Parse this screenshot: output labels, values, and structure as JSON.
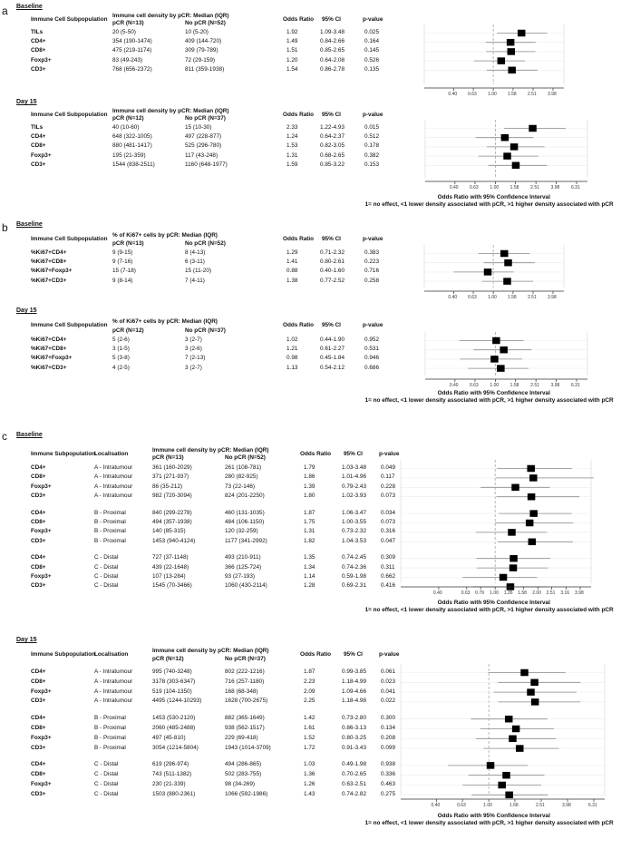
{
  "panels": [
    {
      "letter": "a",
      "blocks": [
        {
          "period": "Baseline",
          "header": {
            "subpop": "Immune Cell Subpopulation",
            "density": "Immune cell density by pCR: Median (IQR)",
            "pcr": "pCR (N=13)",
            "nopcr": "No pCR (N=52)",
            "or": "Odds Ratio",
            "ci": "95% CI",
            "p": "p-value"
          },
          "rows": [
            {
              "label": "TILs",
              "pcr": "20  (5-50)",
              "nopcr": "10 (5-20)",
              "or": "1.92",
              "ci": "1.09-3.48",
              "p": "0.025"
            },
            {
              "label": "CD4+",
              "pcr": "354 (190-1474)",
              "nopcr": "409 (144-720)",
              "or": "1.49",
              "ci": "0.84-2.66",
              "p": "0.164"
            },
            {
              "label": "CD8+",
              "pcr": "475 (219-1174)",
              "nopcr": "309 (79-789)",
              "or": "1.51",
              "ci": "0.85-2.65",
              "p": "0.145"
            },
            {
              "label": "Foxp3+",
              "pcr": "83 (49-243)",
              "nopcr": "72 (29-159)",
              "or": "1.20",
              "ci": "0.64-2.08",
              "p": "0.526"
            },
            {
              "label": "CD3+",
              "pcr": "768 (656-2372)",
              "nopcr": "811 (359-1938)",
              "or": "1.54",
              "ci": "0.86-2.78",
              "p": "0.135"
            }
          ],
          "ticks": [
            "0.40",
            "0.63",
            "1.00",
            "1.58",
            "2.51",
            "3.98"
          ]
        },
        {
          "period": "Day 15",
          "header": {
            "subpop": "Immune Cell Subpopulation",
            "density": "Immune cell density by pCR: Median (IQR)",
            "pcr": "pCR (N=12)",
            "nopcr": "No pCR (N=37)",
            "or": "Odds Ratio",
            "ci": "95% CI",
            "p": "p-value"
          },
          "rows": [
            {
              "label": "TILs",
              "pcr": "40  (10-60)",
              "nopcr": "15 (10-30)",
              "or": "2.33",
              "ci": "1.22-4.93",
              "p": "0.015"
            },
            {
              "label": "CD4+",
              "pcr": "648 (322-1005)",
              "nopcr": "497 (228-877)",
              "or": "1.24",
              "ci": "0.64-2.37",
              "p": "0.512"
            },
            {
              "label": "CD8+",
              "pcr": "880 (481-1417)",
              "nopcr": "525 (296-780)",
              "or": "1.53",
              "ci": "0.82-3.05",
              "p": "0.178"
            },
            {
              "label": "Foxp3+",
              "pcr": "195 (21-359)",
              "nopcr": "117 (43-248)",
              "or": "1.31",
              "ci": "0.68-2.65",
              "p": "0.382"
            },
            {
              "label": "CD3+",
              "pcr": "1544 (838-2511)",
              "nopcr": "1160 (648-1977)",
              "or": "1.59",
              "ci": "0.85-3.22",
              "p": "0.153"
            }
          ],
          "ticks": [
            "0.40",
            "0.63",
            "1.00",
            "1.58",
            "2.51",
            "3.98",
            "6.31"
          ],
          "footer": [
            "Odds Ratio with 95% Confidence Interval",
            "1= no effect, <1 lower density associated with pCR, >1 higher density associated with pCR"
          ]
        }
      ]
    },
    {
      "letter": "b",
      "blocks": [
        {
          "period": "Baseline",
          "header": {
            "subpop": "Immune Cell Subpopulation",
            "density": "% of Ki67+ cells by pCR: Median (IQR)",
            "pcr": "pCR (N=13)",
            "nopcr": "No pCR (N=52)",
            "or": "Odds Ratio",
            "ci": "95% CI",
            "p": "p-value"
          },
          "rows": [
            {
              "label": "%Ki67+CD4+",
              "pcr": "9 (9-15)",
              "nopcr": "8 (4-13)",
              "or": "1.29",
              "ci": "0.71-2.32",
              "p": "0.383"
            },
            {
              "label": "%Ki67+CD8+",
              "pcr": "9 (7-16)",
              "nopcr": "6 (3-11)",
              "or": "1.41",
              "ci": "0.80-2.61",
              "p": "0.223"
            },
            {
              "label": "%Ki67+Foxp3+",
              "pcr": "15 (7-18)",
              "nopcr": "15 (11-20)",
              "or": "0.88",
              "ci": "0.40-1.60",
              "p": "0.716"
            },
            {
              "label": "%Ki67+CD3+",
              "pcr": "9 (8-14)",
              "nopcr": "7 (4-11)",
              "or": "1.38",
              "ci": "0.77-2.52",
              "p": "0.258"
            }
          ],
          "ticks": [
            "0.40",
            "0.63",
            "1.00",
            "1.58",
            "2.51",
            "3.98"
          ]
        },
        {
          "period": "Day 15",
          "header": {
            "subpop": "Immune Cell Subpopulation",
            "density": "% of Ki67+ cells by pCR: Median (IQR)",
            "pcr": "pCR (N=12)",
            "nopcr": "No pCR (N=37)",
            "or": "Odds Ratio",
            "ci": "95% CI",
            "p": "p-value"
          },
          "rows": [
            {
              "label": "%Ki67+CD4+",
              "pcr": "5 (2-6)",
              "nopcr": "3 (2-7)",
              "or": "1.02",
              "ci": "0.44-1.90",
              "p": "0.952"
            },
            {
              "label": "%Ki67+CD8+",
              "pcr": "3 (1-5)",
              "nopcr": "3 (2-6)",
              "or": "1.21",
              "ci": "0.61-2.27",
              "p": "0.531"
            },
            {
              "label": "%Ki67+Foxp3+",
              "pcr": "5 (3-8)",
              "nopcr": "7 (2-13)",
              "or": "0.98",
              "ci": "0.45-1.84",
              "p": "0.946"
            },
            {
              "label": "%Ki67+CD3+",
              "pcr": "4 (2-5)",
              "nopcr": "3 (2-7)",
              "or": "1.13",
              "ci": "0.54-2.12",
              "p": "0.686"
            }
          ],
          "ticks": [
            "0.40",
            "0.63",
            "1.00",
            "1.58",
            "2.51",
            "3.98",
            "6.31"
          ],
          "footer": [
            "Odds Ratio with 95% Confidence Interval",
            "1= no effect, <1 lower density associated with pCR, >1 higher density associated with pCR"
          ]
        }
      ]
    },
    {
      "letter": "c",
      "blocks": [
        {
          "period": "Baseline",
          "header": {
            "subpop": "Immune Subpopulation",
            "loc": "Localisation",
            "density": "Immune cell density by pCR: Median (IQR)",
            "pcr": "pCR (N=13)",
            "nopcr": "No pCR (N=52)",
            "or": "Odds Ratio",
            "ci": "95% CI",
            "p": "p-value"
          },
          "rows": [
            {
              "label": "CD4+",
              "loc": "A - Intratumour",
              "pcr": "361 (160-2029)",
              "nopcr": "261 (108-781)",
              "or": "1.79",
              "ci": "1.03-3.48",
              "p": "0.049"
            },
            {
              "label": "CD8+",
              "loc": "A - Intratumour",
              "pcr": "371 (271-937)",
              "nopcr": "280 (82-925)",
              "or": "1.86",
              "ci": "1.01-4.96",
              "p": "0.117"
            },
            {
              "label": "Foxp3+",
              "loc": "A - Intratumour",
              "pcr": "86 (35-212)",
              "nopcr": "73 (22-146)",
              "or": "1.39",
              "ci": "0.79-2.43",
              "p": "0.228"
            },
            {
              "label": "CD3+",
              "loc": "A - Intratumour",
              "pcr": "982 (720-3094)",
              "nopcr": "824 (201-2250)",
              "or": "1.80",
              "ci": "1.02-3.93",
              "p": "0.073"
            },
            {
              "label": "CD4+",
              "loc": "B - Proximal",
              "pcr": "840 (299-2278)",
              "nopcr": "460 (131-1035)",
              "or": "1.87",
              "ci": "1.06-3.47",
              "p": "0.034"
            },
            {
              "label": "CD8+",
              "loc": "B - Proximal",
              "pcr": "494 (357-1938)",
              "nopcr": "484 (106-1150)",
              "or": "1.75",
              "ci": "1.00-3.55",
              "p": "0.073"
            },
            {
              "label": "Foxp3+",
              "loc": "B - Proximal",
              "pcr": "140 (85-315)",
              "nopcr": "120 (32-259)",
              "or": "1.31",
              "ci": "0.73-2.32",
              "p": "0.316"
            },
            {
              "label": "CD3+",
              "loc": "B - Proximal",
              "pcr": "1453 (940-4124)",
              "nopcr": "1177 (341-2992)",
              "or": "1.82",
              "ci": "1.04-3.53",
              "p": "0.047"
            },
            {
              "label": "CD4+",
              "loc": "C - Distal",
              "pcr": "727 (37-1148)",
              "nopcr": "493 (210-911)",
              "or": "1.35",
              "ci": "0.74-2.45",
              "p": "0.309"
            },
            {
              "label": "CD8+",
              "loc": "C - Distal",
              "pcr": "439 (22-1648)",
              "nopcr": "366 (125-724)",
              "or": "1.34",
              "ci": "0.74-2.36",
              "p": "0.311"
            },
            {
              "label": "Foxp3+",
              "loc": "C - Distal",
              "pcr": "107 (13-284)",
              "nopcr": "93 (27-193)",
              "or": "1.14",
              "ci": "0.59-1.98",
              "p": "0.662"
            },
            {
              "label": "CD3+",
              "loc": "C - Distal",
              "pcr": "1545 (70-3466)",
              "nopcr": "1060 (430-2114)",
              "or": "1.28",
              "ci": "0.69-2.31",
              "p": "0.416"
            }
          ],
          "ticks": [
            "0.40",
            "0.63",
            "0.79",
            "1.00",
            "1.26",
            "1.58",
            "2.00",
            "2.51",
            "3.16",
            "3.98"
          ],
          "footer": [
            "Odds Ratio with 95% Confidence Interval",
            "1= no effect, <1 lower density associated with pCR, >1 higher density associated with pCR"
          ]
        },
        {
          "period": "Day 15",
          "header": {
            "subpop": "Immune Subpopulation",
            "loc": "Localisation",
            "density": "Immune cell density by pCR: Median (IQR)",
            "pcr": "pCR (N=12)",
            "nopcr": "No pCR (N=37)",
            "or": "Odds Ratio",
            "ci": "95% CI",
            "p": "p-value"
          },
          "rows": [
            {
              "label": "CD4+",
              "loc": "A - Intratumour",
              "pcr": "995 (740-3248)",
              "nopcr": "802 (222-1216)",
              "or": "1.87",
              "ci": "0.99-3.85",
              "p": "0.061"
            },
            {
              "label": "CD8+",
              "loc": "A - Intratumour",
              "pcr": "3178 (303-6347)",
              "nopcr": "716 (257-1180)",
              "or": "2.23",
              "ci": "1.18-4.99",
              "p": "0.023"
            },
            {
              "label": "Foxp3+",
              "loc": "A - Intratumour",
              "pcr": "519 (104-1350)",
              "nopcr": "168 (68-348)",
              "or": "2.09",
              "ci": "1.09-4.66",
              "p": "0.041"
            },
            {
              "label": "CD3+",
              "loc": "A - Intratumour",
              "pcr": "4495 (1244-10293)",
              "nopcr": "1628 (700-2675)",
              "or": "2.25",
              "ci": "1.18-4.98",
              "p": "0.022"
            },
            {
              "label": "CD4+",
              "loc": "B - Proximal",
              "pcr": "1453 (530-2120)",
              "nopcr": "882 (365-1649)",
              "or": "1.42",
              "ci": "0.73-2.80",
              "p": "0.300"
            },
            {
              "label": "CD8+",
              "loc": "B - Proximal",
              "pcr": "2060 (485-2488)",
              "nopcr": "938 (562-1517)",
              "or": "1.61",
              "ci": "0.86-3.13",
              "p": "0.134"
            },
            {
              "label": "Foxp3+",
              "loc": "B - Proximal",
              "pcr": "497 (45-810)",
              "nopcr": "229 (69-418)",
              "or": "1.52",
              "ci": "0.80-3.25",
              "p": "0.208"
            },
            {
              "label": "CD3+",
              "loc": "B - Proximal",
              "pcr": "3054 (1214-5804)",
              "nopcr": "1943 (1014-3709)",
              "or": "1.72",
              "ci": "0.91-3.43",
              "p": "0.099"
            },
            {
              "label": "CD4+",
              "loc": "C - Distal",
              "pcr": "619 (296-974)",
              "nopcr": "494 (286-865)",
              "or": "1.03",
              "ci": "0.49-1.98",
              "p": "0.938"
            },
            {
              "label": "CD8+",
              "loc": "C - Distal",
              "pcr": "743 (511-1382)",
              "nopcr": "502 (283-755)",
              "or": "1.36",
              "ci": "0.70-2.65",
              "p": "0.336"
            },
            {
              "label": "Foxp3+",
              "loc": "C - Distal",
              "pcr": "230 (21-339)",
              "nopcr": "98 (34-269)",
              "or": "1.26",
              "ci": "0.63-2.51",
              "p": "0.463"
            },
            {
              "label": "CD3+",
              "loc": "C - Distal",
              "pcr": "1503 (880-2361)",
              "nopcr": "1066 (592-1986)",
              "or": "1.43",
              "ci": "0.74-2.82",
              "p": "0.275"
            }
          ],
          "ticks": [
            "0.40",
            "0.63",
            "1.00",
            "1.58",
            "2.51",
            "3.98",
            "6.31"
          ],
          "footer": [
            "Odds Ratio with 95% Confidence Interval",
            "1= no effect, <1 lower density associated with pCR, >1 higher density associated with pCR"
          ]
        }
      ]
    }
  ],
  "chart_data": [
    {
      "type": "scatter",
      "panel": "a",
      "period": "Baseline",
      "x_scale": "log",
      "ref_line": 1,
      "categories": [
        "TILs",
        "CD4+",
        "CD8+",
        "Foxp3+",
        "CD3+"
      ],
      "series": [
        {
          "estimate": [
            1.92,
            1.49,
            1.51,
            1.2,
            1.54
          ],
          "ci_low": [
            1.09,
            0.84,
            0.85,
            0.64,
            0.86
          ],
          "ci_high": [
            3.48,
            2.66,
            2.65,
            2.08,
            2.78
          ]
        }
      ]
    },
    {
      "type": "scatter",
      "panel": "a",
      "period": "Day 15",
      "x_scale": "log",
      "ref_line": 1,
      "categories": [
        "TILs",
        "CD4+",
        "CD8+",
        "Foxp3+",
        "CD3+"
      ],
      "series": [
        {
          "estimate": [
            2.33,
            1.24,
            1.53,
            1.31,
            1.59
          ],
          "ci_low": [
            1.22,
            0.64,
            0.82,
            0.68,
            0.85
          ],
          "ci_high": [
            4.93,
            2.37,
            3.05,
            2.65,
            3.22
          ]
        }
      ]
    },
    {
      "type": "scatter",
      "panel": "b",
      "period": "Baseline",
      "x_scale": "log",
      "ref_line": 1,
      "categories": [
        "%Ki67+CD4+",
        "%Ki67+CD8+",
        "%Ki67+Foxp3+",
        "%Ki67+CD3+"
      ],
      "series": [
        {
          "estimate": [
            1.29,
            1.41,
            0.88,
            1.38
          ],
          "ci_low": [
            0.71,
            0.8,
            0.4,
            0.77
          ],
          "ci_high": [
            2.32,
            2.61,
            1.6,
            2.52
          ]
        }
      ]
    },
    {
      "type": "scatter",
      "panel": "b",
      "period": "Day 15",
      "x_scale": "log",
      "ref_line": 1,
      "categories": [
        "%Ki67+CD4+",
        "%Ki67+CD8+",
        "%Ki67+Foxp3+",
        "%Ki67+CD3+"
      ],
      "series": [
        {
          "estimate": [
            1.02,
            1.21,
            0.98,
            1.13
          ],
          "ci_low": [
            0.44,
            0.61,
            0.45,
            0.54
          ],
          "ci_high": [
            1.9,
            2.27,
            1.84,
            2.12
          ]
        }
      ]
    }
  ]
}
